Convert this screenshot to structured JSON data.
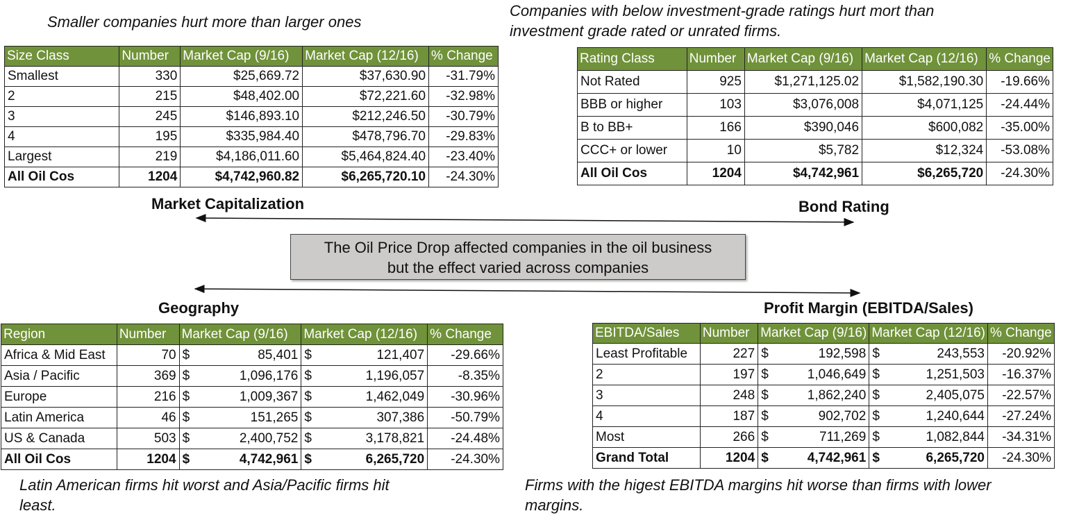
{
  "captions": {
    "market_cap": "Smaller companies hurt more than larger ones",
    "bond_rating_line1": "Companies with below investment-grade ratings hurt mort than",
    "bond_rating_line2": "investment grade rated or unrated firms.",
    "geography_line1": "Latin American firms hit worst and Asia/Pacific firms hit",
    "geography_line2": "least.",
    "profit_line1": "Firms with the higest EBITDA margins hit worse than firms with lower",
    "profit_line2": "margins."
  },
  "section_titles": {
    "market_cap": "Market Capitalization",
    "bond_rating": "Bond Rating",
    "geography": "Geography",
    "profit_margin": "Profit Margin (EBITDA/Sales)"
  },
  "center_box": {
    "line1": "The Oil Price Drop affected companies in the oil business",
    "line2": "but the effect varied across companies"
  },
  "tables": {
    "size": {
      "headers": [
        "Size Class",
        "Number",
        "Market Cap (9/16)",
        "Market Cap (12/16)",
        "% Change"
      ],
      "rows": [
        [
          "Smallest",
          "330",
          "$25,669.72",
          "$37,630.90",
          "-31.79%"
        ],
        [
          "2",
          "215",
          "$48,402.00",
          "$72,221.60",
          "-32.98%"
        ],
        [
          "3",
          "245",
          "$146,893.10",
          "$212,246.50",
          "-30.79%"
        ],
        [
          "4",
          "195",
          "$335,984.40",
          "$478,796.70",
          "-29.83%"
        ],
        [
          "Largest",
          "219",
          "$4,186,011.60",
          "$5,464,824.40",
          "-23.40%"
        ],
        [
          "All Oil Cos",
          "1204",
          "$4,742,960.82",
          "$6,265,720.10",
          "-24.30%"
        ]
      ]
    },
    "rating": {
      "headers": [
        "Rating Class",
        "Number",
        "Market Cap (9/16)",
        "Market Cap (12/16)",
        "% Change"
      ],
      "rows": [
        [
          "Not Rated",
          "925",
          "$1,271,125.02",
          "$1,582,190.30",
          "-19.66%"
        ],
        [
          "BBB or higher",
          "103",
          "$3,076,008",
          "$4,071,125",
          "-24.44%"
        ],
        [
          "B to BB+",
          "166",
          "$390,046",
          "$600,082",
          "-35.00%"
        ],
        [
          "CCC+ or lower",
          "10",
          "$5,782",
          "$12,324",
          "-53.08%"
        ],
        [
          "All Oil Cos",
          "1204",
          "$4,742,961",
          "$6,265,720",
          "-24.30%"
        ]
      ]
    },
    "region": {
      "headers": [
        "Region",
        "Number",
        "Market Cap (9/16)",
        "Market Cap (12/16)",
        "% Change"
      ],
      "rows": [
        [
          "Africa & Mid East",
          "70",
          "85,401",
          "121,407",
          "-29.66%"
        ],
        [
          "Asia / Pacific",
          "369",
          "1,096,176",
          "1,196,057",
          "-8.35%"
        ],
        [
          "Europe",
          "216",
          "1,009,367",
          "1,462,049",
          "-30.96%"
        ],
        [
          "Latin America",
          "46",
          "151,265",
          "307,386",
          "-50.79%"
        ],
        [
          "US & Canada",
          "503",
          "2,400,752",
          "3,178,821",
          "-24.48%"
        ],
        [
          "All Oil Cos",
          "1204",
          "4,742,961",
          "6,265,720",
          "-24.30%"
        ]
      ]
    },
    "ebitda": {
      "headers": [
        "EBITDA/Sales",
        "Number",
        "Market Cap (9/16)",
        "Market Cap (12/16)",
        "% Change"
      ],
      "rows": [
        [
          "Least Profitable",
          "227",
          "192,598",
          "243,553",
          "-20.92%"
        ],
        [
          "2",
          "197",
          "1,046,649",
          "1,251,503",
          "-16.37%"
        ],
        [
          "3",
          "248",
          "1,862,240",
          "2,405,075",
          "-22.57%"
        ],
        [
          "4",
          "187",
          "902,702",
          "1,240,644",
          "-27.24%"
        ],
        [
          "Most",
          "266",
          "711,269",
          "1,082,844",
          "-34.31%"
        ],
        [
          "Grand Total",
          "1204",
          "4,742,961",
          "6,265,720",
          "-24.30%"
        ]
      ]
    }
  },
  "currency_symbol": "$",
  "colors": {
    "header_green": "#70923a",
    "center_box_gray": "#cdcaca"
  }
}
